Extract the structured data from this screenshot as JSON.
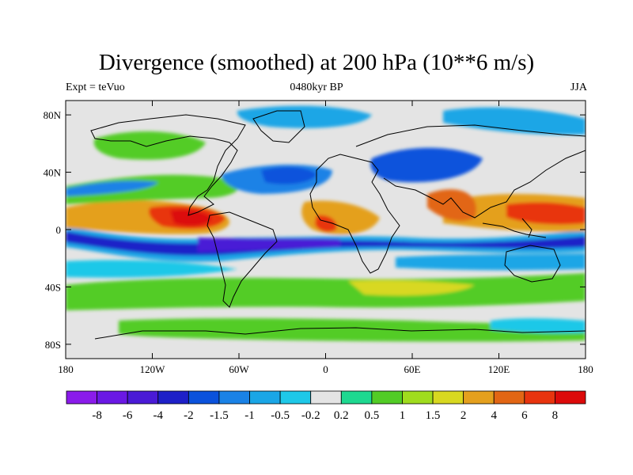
{
  "header": {
    "title": "Divergence (smoothed) at 200 hPa (10**6 m/s)",
    "left": "Expt = teVuo",
    "center": "0480kyr BP",
    "right": "JJA"
  },
  "map": {
    "lat_range": [
      -90,
      90
    ],
    "lon_range": [
      -180,
      180
    ],
    "lat_ticks": [
      {
        "value": 80,
        "label": "80N"
      },
      {
        "value": 40,
        "label": "40N"
      },
      {
        "value": 0,
        "label": "0"
      },
      {
        "value": -40,
        "label": "40S"
      },
      {
        "value": -80,
        "label": "80S"
      }
    ],
    "lon_ticks": [
      {
        "value": -180,
        "label": "180"
      },
      {
        "value": -120,
        "label": "120W"
      },
      {
        "value": -60,
        "label": "60W"
      },
      {
        "value": 0,
        "label": "0"
      },
      {
        "value": 60,
        "label": "60E"
      },
      {
        "value": 120,
        "label": "120E"
      },
      {
        "value": 180,
        "label": "180"
      }
    ],
    "background": "#e4e4e4"
  },
  "colorbar": {
    "colors": [
      "#8a1bea",
      "#6a18e4",
      "#4a1ad6",
      "#1e20c8",
      "#0b52dc",
      "#1a82e6",
      "#1aa6e6",
      "#1ec8e8",
      "#e4e4e4",
      "#1ed890",
      "#52cc26",
      "#a0dc1e",
      "#d8d820",
      "#e4a01e",
      "#e26614",
      "#e8340e",
      "#dc0a0a"
    ],
    "labels": [
      "-8",
      "-6",
      "-4",
      "-2",
      "-1.5",
      "-1",
      "-0.5",
      "-0.2",
      "0.2",
      "0.5",
      "1",
      "1.5",
      "2",
      "4",
      "6",
      "8"
    ]
  }
}
